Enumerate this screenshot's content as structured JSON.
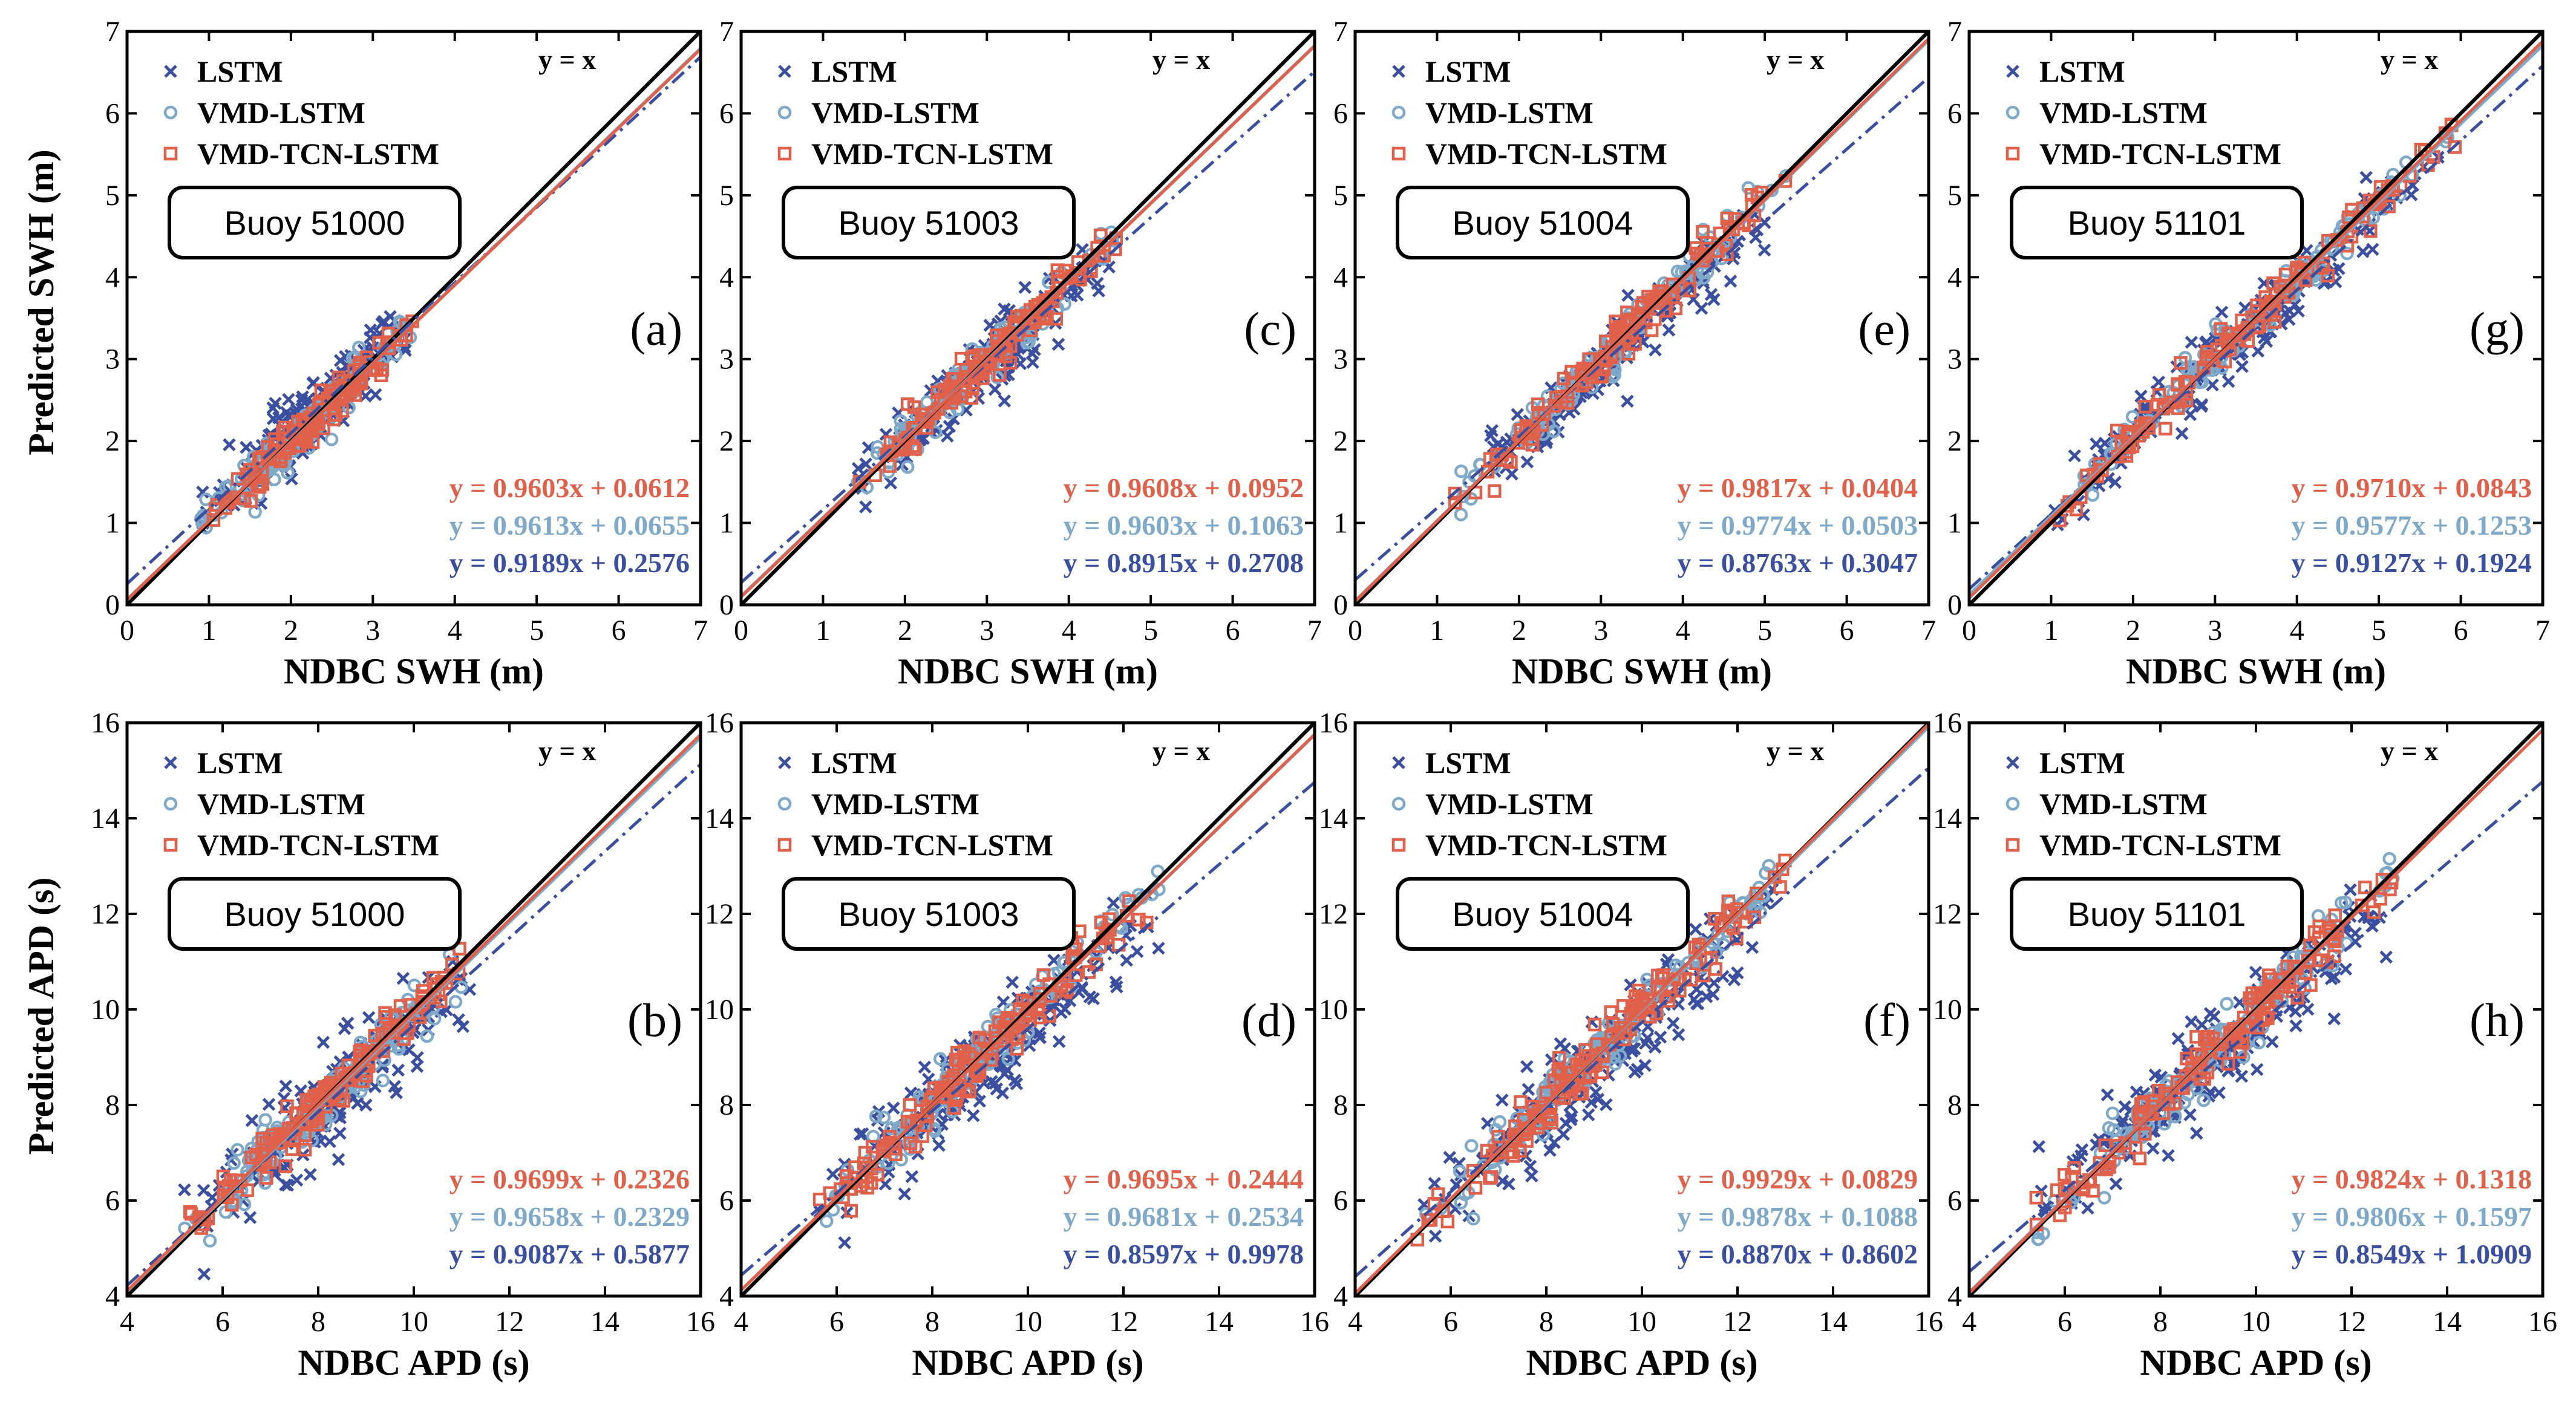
{
  "colors": {
    "lstm": "#3b4fa0",
    "vmd_lstm": "#7ea9c9",
    "vmd_tcn_lstm": "#e0604a",
    "identity": "#000000"
  },
  "legend": {
    "items": [
      {
        "label": "LSTM",
        "marker": "x",
        "color": "#3b4fa0"
      },
      {
        "label": "VMD-LSTM",
        "marker": "circle",
        "color": "#7ea9c9"
      },
      {
        "label": "VMD-TCN-LSTM",
        "marker": "square",
        "color": "#e0604a"
      }
    ],
    "identity_label": "y = x"
  },
  "chart_data": [
    {
      "type": "scatter",
      "panel": "(a)",
      "buoy": "Buoy 51000",
      "xlabel": "NDBC SWH (m)",
      "ylabel": "Predicted SWH (m)",
      "xlim": [
        0,
        7
      ],
      "ylim": [
        0,
        7
      ],
      "ticks": [
        0,
        1,
        2,
        3,
        4,
        5,
        6,
        7
      ],
      "x_range": [
        0.9,
        3.5
      ],
      "series": [
        {
          "name": "LSTM",
          "slope": 0.9189,
          "intercept": 0.2576,
          "equation": "y = 0.9189x + 0.2576"
        },
        {
          "name": "VMD-LSTM",
          "slope": 0.9613,
          "intercept": 0.0655,
          "equation": "y = 0.9613x + 0.0655"
        },
        {
          "name": "VMD-TCN-LSTM",
          "slope": 0.9603,
          "intercept": 0.0612,
          "equation": "y = 0.9603x + 0.0612"
        }
      ]
    },
    {
      "type": "scatter",
      "panel": "(b)",
      "buoy": "Buoy 51000",
      "xlabel": "NDBC APD (s)",
      "ylabel": "Predicted APD (s)",
      "xlim": [
        4,
        16
      ],
      "ylim": [
        4,
        16
      ],
      "ticks": [
        4,
        6,
        8,
        10,
        12,
        14,
        16
      ],
      "x_range": [
        5.2,
        11.2
      ],
      "series": [
        {
          "name": "LSTM",
          "slope": 0.9087,
          "intercept": 0.5877,
          "equation": "y = 0.9087x + 0.5877"
        },
        {
          "name": "VMD-LSTM",
          "slope": 0.9658,
          "intercept": 0.2329,
          "equation": "y = 0.9658x + 0.2329"
        },
        {
          "name": "VMD-TCN-LSTM",
          "slope": 0.9699,
          "intercept": 0.2326,
          "equation": "y = 0.9699x + 0.2326"
        }
      ]
    },
    {
      "type": "scatter",
      "panel": "(c)",
      "buoy": "Buoy 51003",
      "xlabel": "NDBC SWH (m)",
      "ylabel": "",
      "xlim": [
        0,
        7
      ],
      "ylim": [
        0,
        7
      ],
      "ticks": [
        0,
        1,
        2,
        3,
        4,
        5,
        6,
        7
      ],
      "x_range": [
        1.4,
        4.6
      ],
      "series": [
        {
          "name": "LSTM",
          "slope": 0.8915,
          "intercept": 0.2708,
          "equation": "y = 0.8915x + 0.2708"
        },
        {
          "name": "VMD-LSTM",
          "slope": 0.9603,
          "intercept": 0.1063,
          "equation": "y = 0.9603x + 0.1063"
        },
        {
          "name": "VMD-TCN-LSTM",
          "slope": 0.9608,
          "intercept": 0.0952,
          "equation": "y = 0.9608x + 0.0952"
        }
      ]
    },
    {
      "type": "scatter",
      "panel": "(d)",
      "buoy": "Buoy 51003",
      "xlabel": "NDBC APD  (s)",
      "ylabel": "",
      "xlim": [
        4,
        16
      ],
      "ylim": [
        4,
        16
      ],
      "ticks": [
        4,
        6,
        8,
        10,
        12,
        14,
        16
      ],
      "x_range": [
        5.5,
        12.8
      ],
      "series": [
        {
          "name": "LSTM",
          "slope": 0.8597,
          "intercept": 0.9978,
          "equation": "y = 0.8597x + 0.9978"
        },
        {
          "name": "VMD-LSTM",
          "slope": 0.9681,
          "intercept": 0.2534,
          "equation": "y = 0.9681x + 0.2534"
        },
        {
          "name": "VMD-TCN-LSTM",
          "slope": 0.9695,
          "intercept": 0.2444,
          "equation": "y = 0.9695x + 0.2444"
        }
      ]
    },
    {
      "type": "scatter",
      "panel": "(e)",
      "buoy": "Buoy 51004",
      "xlabel": "NDBC SWH (m)",
      "ylabel": "",
      "xlim": [
        0,
        7
      ],
      "ylim": [
        0,
        7
      ],
      "ticks": [
        0,
        1,
        2,
        3,
        4,
        5,
        6,
        7
      ],
      "x_range": [
        1.2,
        5.3
      ],
      "series": [
        {
          "name": "LSTM",
          "slope": 0.8763,
          "intercept": 0.3047,
          "equation": "y = 0.8763x + 0.3047"
        },
        {
          "name": "VMD-LSTM",
          "slope": 0.9774,
          "intercept": 0.0503,
          "equation": "y = 0.9774x + 0.0503"
        },
        {
          "name": "VMD-TCN-LSTM",
          "slope": 0.9817,
          "intercept": 0.0404,
          "equation": "y = 0.9817x + 0.0404"
        }
      ]
    },
    {
      "type": "scatter",
      "panel": "(f)",
      "buoy": "Buoy 51004",
      "xlabel": "NDBC APD  (s)",
      "ylabel": "",
      "xlim": [
        4,
        16
      ],
      "ylim": [
        4,
        16
      ],
      "ticks": [
        4,
        6,
        8,
        10,
        12,
        14,
        16
      ],
      "x_range": [
        5.3,
        13.0
      ],
      "series": [
        {
          "name": "LSTM",
          "slope": 0.887,
          "intercept": 0.8602,
          "equation": "y = 0.8870x + 0.8602"
        },
        {
          "name": "VMD-LSTM",
          "slope": 0.9878,
          "intercept": 0.1088,
          "equation": "y = 0.9878x + 0.1088"
        },
        {
          "name": "VMD-TCN-LSTM",
          "slope": 0.9929,
          "intercept": 0.0829,
          "equation": "y = 0.9929x + 0.0829"
        }
      ]
    },
    {
      "type": "scatter",
      "panel": "(g)",
      "buoy": "Buoy 51101",
      "xlabel": "NDBC SWH (m)",
      "ylabel": "",
      "xlim": [
        0,
        7
      ],
      "ylim": [
        0,
        7
      ],
      "ticks": [
        0,
        1,
        2,
        3,
        4,
        5,
        6,
        7
      ],
      "x_range": [
        1.0,
        6.0
      ],
      "series": [
        {
          "name": "LSTM",
          "slope": 0.9127,
          "intercept": 0.1924,
          "equation": "y = 0.9127x + 0.1924"
        },
        {
          "name": "VMD-LSTM",
          "slope": 0.9577,
          "intercept": 0.1253,
          "equation": "y = 0.9577x + 0.1253"
        },
        {
          "name": "VMD-TCN-LSTM",
          "slope": 0.971,
          "intercept": 0.0843,
          "equation": "y = 0.9710x + 0.0843"
        }
      ]
    },
    {
      "type": "scatter",
      "panel": "(h)",
      "buoy": "Buoy 51101",
      "xlabel": "NDBC APD  (s)",
      "ylabel": "",
      "xlim": [
        4,
        16
      ],
      "ylim": [
        4,
        16
      ],
      "ticks": [
        4,
        6,
        8,
        10,
        12,
        14,
        16
      ],
      "x_range": [
        5.4,
        13.0
      ],
      "series": [
        {
          "name": "LSTM",
          "slope": 0.8549,
          "intercept": 1.0909,
          "equation": "y = 0.8549x + 1.0909"
        },
        {
          "name": "VMD-LSTM",
          "slope": 0.9806,
          "intercept": 0.1597,
          "equation": "y = 0.9806x + 0.1597"
        },
        {
          "name": "VMD-TCN-LSTM",
          "slope": 0.9824,
          "intercept": 0.1318,
          "equation": "y = 0.9824x + 0.1318"
        }
      ]
    }
  ]
}
